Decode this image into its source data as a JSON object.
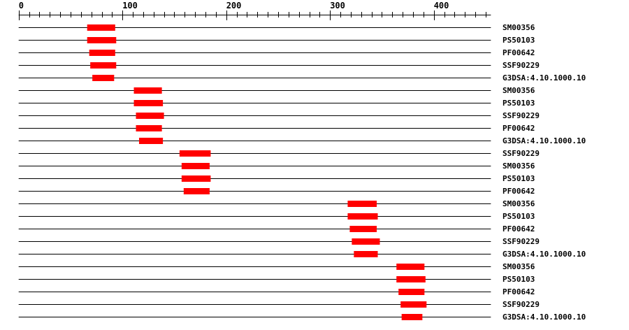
{
  "axis": {
    "min": 0,
    "max": 455,
    "major_step": 100,
    "minor_step": 10,
    "labels": [
      "0",
      "100",
      "200",
      "300",
      "400"
    ]
  },
  "colors": {
    "domain": "#ff0000",
    "line": "#000000"
  },
  "tracks": [
    {
      "label": "SM00356",
      "start": 66,
      "end": 93
    },
    {
      "label": "PS50103",
      "start": 66,
      "end": 94
    },
    {
      "label": "PF00642",
      "start": 68,
      "end": 93
    },
    {
      "label": "SSF90229",
      "start": 69,
      "end": 94
    },
    {
      "label": "G3DSA:4.10.1000.10",
      "start": 71,
      "end": 92
    },
    {
      "label": "SM00356",
      "start": 111,
      "end": 138
    },
    {
      "label": "PS50103",
      "start": 111,
      "end": 139
    },
    {
      "label": "SSF90229",
      "start": 113,
      "end": 140
    },
    {
      "label": "PF00642",
      "start": 113,
      "end": 138
    },
    {
      "label": "G3DSA:4.10.1000.10",
      "start": 116,
      "end": 139
    },
    {
      "label": "SSF90229",
      "start": 155,
      "end": 185
    },
    {
      "label": "SM00356",
      "start": 157,
      "end": 184
    },
    {
      "label": "PS50103",
      "start": 157,
      "end": 185
    },
    {
      "label": "PF00642",
      "start": 159,
      "end": 184
    },
    {
      "label": "SM00356",
      "start": 317,
      "end": 345
    },
    {
      "label": "PS50103",
      "start": 317,
      "end": 346
    },
    {
      "label": "PF00642",
      "start": 319,
      "end": 345
    },
    {
      "label": "SSF90229",
      "start": 321,
      "end": 348
    },
    {
      "label": "G3DSA:4.10.1000.10",
      "start": 323,
      "end": 346
    },
    {
      "label": "SM00356",
      "start": 364,
      "end": 391
    },
    {
      "label": "PS50103",
      "start": 364,
      "end": 392
    },
    {
      "label": "PF00642",
      "start": 366,
      "end": 391
    },
    {
      "label": "SSF90229",
      "start": 368,
      "end": 393
    },
    {
      "label": "G3DSA:4.10.1000.10",
      "start": 369,
      "end": 389
    }
  ]
}
